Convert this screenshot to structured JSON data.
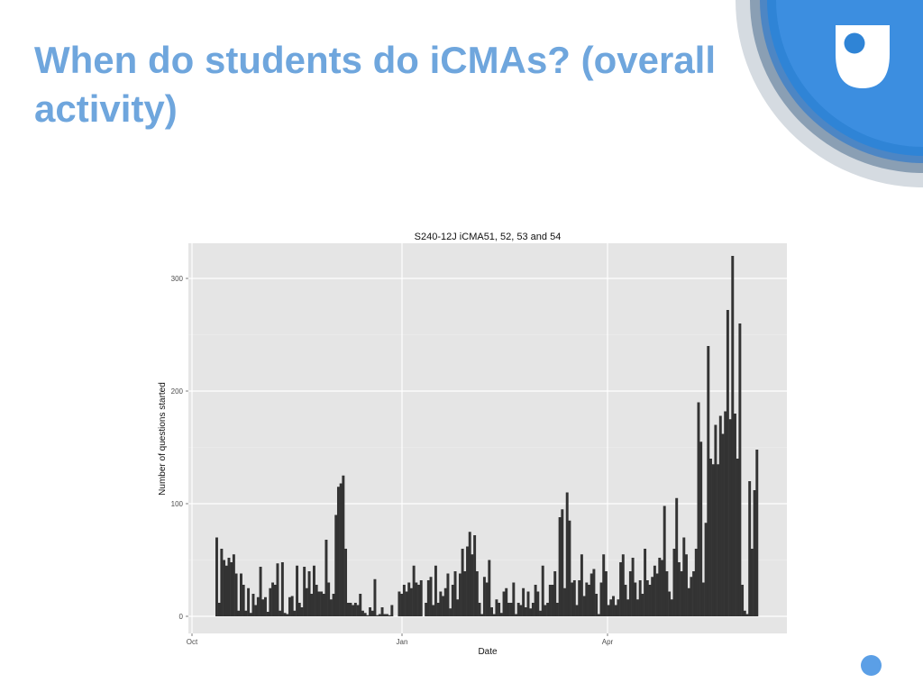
{
  "slide": {
    "title": "When do students do iCMAs? (overall activity)"
  },
  "colors": {
    "title": "#6fa6dd",
    "logo_blue": "#2f84d6",
    "panel_background": "#e5e5e5",
    "bars": "#333333"
  },
  "icons": {
    "logo": "open-university-shield-logo",
    "decoration": "blue-circle-dot"
  },
  "chart_data": {
    "type": "bar",
    "title": "S240-12J iCMA51, 52, 53 and 54",
    "xlabel": "Date",
    "ylabel": "Number of questions started",
    "x_ticks": [
      "Oct",
      "Jan",
      "Apr"
    ],
    "y_ticks": [
      0,
      100,
      200,
      300
    ],
    "ylim": [
      0,
      330
    ],
    "grid": true,
    "legend": "none",
    "values": [
      70,
      12,
      60,
      50,
      45,
      52,
      48,
      55,
      38,
      5,
      38,
      28,
      5,
      25,
      3,
      20,
      10,
      17,
      44,
      15,
      17,
      4,
      25,
      30,
      28,
      47,
      5,
      48,
      3,
      2,
      17,
      18,
      5,
      45,
      12,
      8,
      44,
      25,
      40,
      20,
      45,
      28,
      22,
      22,
      20,
      68,
      30,
      15,
      20,
      90,
      115,
      118,
      125,
      60,
      12,
      12,
      10,
      12,
      10,
      20,
      5,
      3,
      1,
      8,
      5,
      33,
      1,
      2,
      8,
      2,
      2,
      1,
      10,
      0,
      0,
      22,
      20,
      28,
      22,
      30,
      25,
      45,
      30,
      28,
      32,
      0,
      12,
      32,
      35,
      10,
      45,
      12,
      22,
      18,
      25,
      38,
      7,
      28,
      40,
      15,
      38,
      60,
      40,
      62,
      75,
      55,
      72,
      40,
      12,
      2,
      35,
      30,
      50,
      8,
      2,
      15,
      12,
      3,
      22,
      25,
      12,
      12,
      30,
      2,
      12,
      10,
      25,
      8,
      22,
      7,
      12,
      28,
      22,
      5,
      45,
      10,
      12,
      28,
      28,
      40,
      12,
      88,
      95,
      25,
      110,
      85,
      30,
      32,
      10,
      32,
      55,
      18,
      30,
      28,
      38,
      42,
      20,
      2,
      30,
      55,
      40,
      10,
      15,
      18,
      10,
      15,
      48,
      55,
      28,
      15,
      40,
      52,
      30,
      15,
      32,
      20,
      60,
      32,
      28,
      35,
      45,
      38,
      52,
      50,
      98,
      40,
      22,
      15,
      60,
      105,
      48,
      40,
      70,
      55,
      25,
      35,
      40,
      60,
      190,
      155,
      30,
      83,
      240,
      140,
      135,
      170,
      135,
      178,
      162,
      182,
      272,
      175,
      320,
      180,
      140,
      260,
      28,
      5,
      2,
      120,
      60,
      112,
      148
    ]
  }
}
